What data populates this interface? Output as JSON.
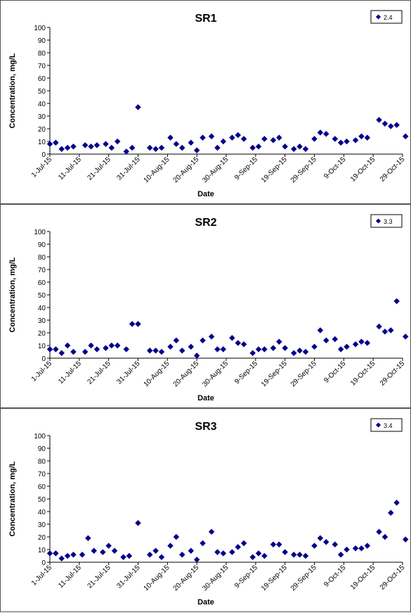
{
  "colors": {
    "marker": "#00008B",
    "axis": "#000000",
    "frame": "#555555"
  },
  "chart_data": [
    {
      "type": "scatter",
      "title": "SR1",
      "xlabel": "Date",
      "ylabel": "Concentration, mg/L",
      "legend": {
        "label": "2.4",
        "placement": "top-right"
      },
      "x_range": [
        "2015-07-01",
        "2015-10-29"
      ],
      "ylim": [
        0,
        100
      ],
      "y_ticks": [
        0,
        10,
        20,
        30,
        40,
        50,
        60,
        70,
        80,
        90,
        100
      ],
      "x_tick_labels": [
        "1-Jul-15",
        "11-Jul-15",
        "21-Jul-15",
        "31-Jul-15",
        "10-Aug-15",
        "20-Aug-15",
        "30-Aug-15",
        "9-Sep-15",
        "19-Sep-15",
        "29-Sep-15",
        "9-Oct-15",
        "19-Oct-15",
        "29-Oct-15"
      ],
      "grid": false,
      "points": [
        [
          "2015-07-01",
          8
        ],
        [
          "2015-07-03",
          9
        ],
        [
          "2015-07-05",
          4
        ],
        [
          "2015-07-07",
          5
        ],
        [
          "2015-07-09",
          6
        ],
        [
          "2015-07-13",
          7
        ],
        [
          "2015-07-15",
          6
        ],
        [
          "2015-07-17",
          7
        ],
        [
          "2015-07-20",
          8
        ],
        [
          "2015-07-22",
          5
        ],
        [
          "2015-07-24",
          10
        ],
        [
          "2015-07-27",
          2
        ],
        [
          "2015-07-29",
          5
        ],
        [
          "2015-07-31",
          37
        ],
        [
          "2015-08-04",
          5
        ],
        [
          "2015-08-06",
          4
        ],
        [
          "2015-08-08",
          5
        ],
        [
          "2015-08-11",
          13
        ],
        [
          "2015-08-13",
          8
        ],
        [
          "2015-08-15",
          5
        ],
        [
          "2015-08-18",
          9
        ],
        [
          "2015-08-20",
          3
        ],
        [
          "2015-08-22",
          13
        ],
        [
          "2015-08-25",
          14
        ],
        [
          "2015-08-27",
          5
        ],
        [
          "2015-08-29",
          10
        ],
        [
          "2015-09-01",
          13
        ],
        [
          "2015-09-03",
          15
        ],
        [
          "2015-09-05",
          12
        ],
        [
          "2015-09-08",
          5
        ],
        [
          "2015-09-10",
          6
        ],
        [
          "2015-09-12",
          12
        ],
        [
          "2015-09-15",
          11
        ],
        [
          "2015-09-17",
          13
        ],
        [
          "2015-09-19",
          6
        ],
        [
          "2015-09-22",
          4
        ],
        [
          "2015-09-24",
          6
        ],
        [
          "2015-09-26",
          4
        ],
        [
          "2015-09-29",
          12
        ],
        [
          "2015-10-01",
          17
        ],
        [
          "2015-10-03",
          16
        ],
        [
          "2015-10-06",
          12
        ],
        [
          "2015-10-08",
          9
        ],
        [
          "2015-10-10",
          10
        ],
        [
          "2015-10-13",
          11
        ],
        [
          "2015-10-15",
          14
        ],
        [
          "2015-10-17",
          13
        ],
        [
          "2015-10-21",
          27
        ],
        [
          "2015-10-23",
          24
        ],
        [
          "2015-10-25",
          22
        ],
        [
          "2015-10-27",
          23
        ],
        [
          "2015-10-30",
          14
        ]
      ]
    },
    {
      "type": "scatter",
      "title": "SR2",
      "xlabel": "Date",
      "ylabel": "Concentration, mg/L",
      "legend": {
        "label": "3.3",
        "placement": "top-right"
      },
      "x_range": [
        "2015-07-01",
        "2015-10-29"
      ],
      "ylim": [
        0,
        100
      ],
      "y_ticks": [
        0,
        10,
        20,
        30,
        40,
        50,
        60,
        70,
        80,
        90,
        100
      ],
      "x_tick_labels": [
        "1-Jul-15",
        "11-Jul-15",
        "21-Jul-15",
        "31-Jul-15",
        "10-Aug-15",
        "20-Aug-15",
        "30-Aug-15",
        "9-Sep-15",
        "19-Sep-15",
        "29-Sep-15",
        "9-Oct-15",
        "19-Oct-15",
        "29-Oct-15"
      ],
      "grid": false,
      "points": [
        [
          "2015-07-01",
          7
        ],
        [
          "2015-07-03",
          7
        ],
        [
          "2015-07-05",
          4
        ],
        [
          "2015-07-07",
          10
        ],
        [
          "2015-07-09",
          5
        ],
        [
          "2015-07-13",
          5
        ],
        [
          "2015-07-15",
          10
        ],
        [
          "2015-07-17",
          7
        ],
        [
          "2015-07-20",
          8
        ],
        [
          "2015-07-22",
          10
        ],
        [
          "2015-07-24",
          10
        ],
        [
          "2015-07-27",
          7
        ],
        [
          "2015-07-29",
          27
        ],
        [
          "2015-07-31",
          27
        ],
        [
          "2015-08-04",
          6
        ],
        [
          "2015-08-06",
          6
        ],
        [
          "2015-08-08",
          5
        ],
        [
          "2015-08-11",
          9
        ],
        [
          "2015-08-13",
          14
        ],
        [
          "2015-08-15",
          6
        ],
        [
          "2015-08-18",
          9
        ],
        [
          "2015-08-20",
          2
        ],
        [
          "2015-08-22",
          14
        ],
        [
          "2015-08-25",
          17
        ],
        [
          "2015-08-27",
          7
        ],
        [
          "2015-08-29",
          7
        ],
        [
          "2015-09-01",
          16
        ],
        [
          "2015-09-03",
          12
        ],
        [
          "2015-09-05",
          11
        ],
        [
          "2015-09-08",
          4
        ],
        [
          "2015-09-10",
          7
        ],
        [
          "2015-09-12",
          7
        ],
        [
          "2015-09-15",
          8
        ],
        [
          "2015-09-17",
          13
        ],
        [
          "2015-09-19",
          8
        ],
        [
          "2015-09-22",
          4
        ],
        [
          "2015-09-24",
          6
        ],
        [
          "2015-09-26",
          5
        ],
        [
          "2015-09-29",
          9
        ],
        [
          "2015-10-01",
          22
        ],
        [
          "2015-10-03",
          14
        ],
        [
          "2015-10-06",
          15
        ],
        [
          "2015-10-08",
          7
        ],
        [
          "2015-10-10",
          9
        ],
        [
          "2015-10-13",
          11
        ],
        [
          "2015-10-15",
          13
        ],
        [
          "2015-10-17",
          12
        ],
        [
          "2015-10-21",
          25
        ],
        [
          "2015-10-23",
          21
        ],
        [
          "2015-10-25",
          22
        ],
        [
          "2015-10-27",
          45
        ],
        [
          "2015-10-30",
          17
        ]
      ]
    },
    {
      "type": "scatter",
      "title": "SR3",
      "xlabel": "Date",
      "ylabel": "Concentration, mg/L",
      "legend": {
        "label": "3.4",
        "placement": "top-right"
      },
      "x_range": [
        "2015-07-01",
        "2015-10-29"
      ],
      "ylim": [
        0,
        100
      ],
      "y_ticks": [
        0,
        10,
        20,
        30,
        40,
        50,
        60,
        70,
        80,
        90,
        100
      ],
      "x_tick_labels": [
        "1-Jul-15",
        "11-Jul-15",
        "21-Jul-15",
        "31-Jul-15",
        "10-Aug-15",
        "20-Aug-15",
        "30-Aug-15",
        "9-Sep-15",
        "19-Sep-15",
        "29-Sep-15",
        "9-Oct-15",
        "19-Oct-15",
        "29-Oct-15"
      ],
      "grid": false,
      "points": [
        [
          "2015-07-01",
          7
        ],
        [
          "2015-07-03",
          7
        ],
        [
          "2015-07-05",
          3
        ],
        [
          "2015-07-07",
          5
        ],
        [
          "2015-07-09",
          6
        ],
        [
          "2015-07-12",
          6
        ],
        [
          "2015-07-14",
          19
        ],
        [
          "2015-07-16",
          9
        ],
        [
          "2015-07-19",
          8
        ],
        [
          "2015-07-21",
          13
        ],
        [
          "2015-07-23",
          9
        ],
        [
          "2015-07-26",
          4
        ],
        [
          "2015-07-28",
          5
        ],
        [
          "2015-07-31",
          31
        ],
        [
          "2015-08-04",
          6
        ],
        [
          "2015-08-06",
          9
        ],
        [
          "2015-08-08",
          4
        ],
        [
          "2015-08-11",
          13
        ],
        [
          "2015-08-13",
          20
        ],
        [
          "2015-08-15",
          6
        ],
        [
          "2015-08-18",
          9
        ],
        [
          "2015-08-20",
          2
        ],
        [
          "2015-08-22",
          15
        ],
        [
          "2015-08-25",
          24
        ],
        [
          "2015-08-27",
          8
        ],
        [
          "2015-08-29",
          7
        ],
        [
          "2015-09-01",
          8
        ],
        [
          "2015-09-03",
          12
        ],
        [
          "2015-09-05",
          15
        ],
        [
          "2015-09-08",
          4
        ],
        [
          "2015-09-10",
          7
        ],
        [
          "2015-09-12",
          5
        ],
        [
          "2015-09-15",
          14
        ],
        [
          "2015-09-17",
          14
        ],
        [
          "2015-09-19",
          8
        ],
        [
          "2015-09-22",
          6
        ],
        [
          "2015-09-24",
          6
        ],
        [
          "2015-09-26",
          5
        ],
        [
          "2015-09-29",
          13
        ],
        [
          "2015-10-01",
          19
        ],
        [
          "2015-10-03",
          16
        ],
        [
          "2015-10-06",
          14
        ],
        [
          "2015-10-08",
          6
        ],
        [
          "2015-10-10",
          10
        ],
        [
          "2015-10-13",
          11
        ],
        [
          "2015-10-15",
          11
        ],
        [
          "2015-10-17",
          13
        ],
        [
          "2015-10-21",
          24
        ],
        [
          "2015-10-23",
          20
        ],
        [
          "2015-10-25",
          39
        ],
        [
          "2015-10-27",
          47
        ],
        [
          "2015-10-30",
          18
        ]
      ]
    }
  ]
}
